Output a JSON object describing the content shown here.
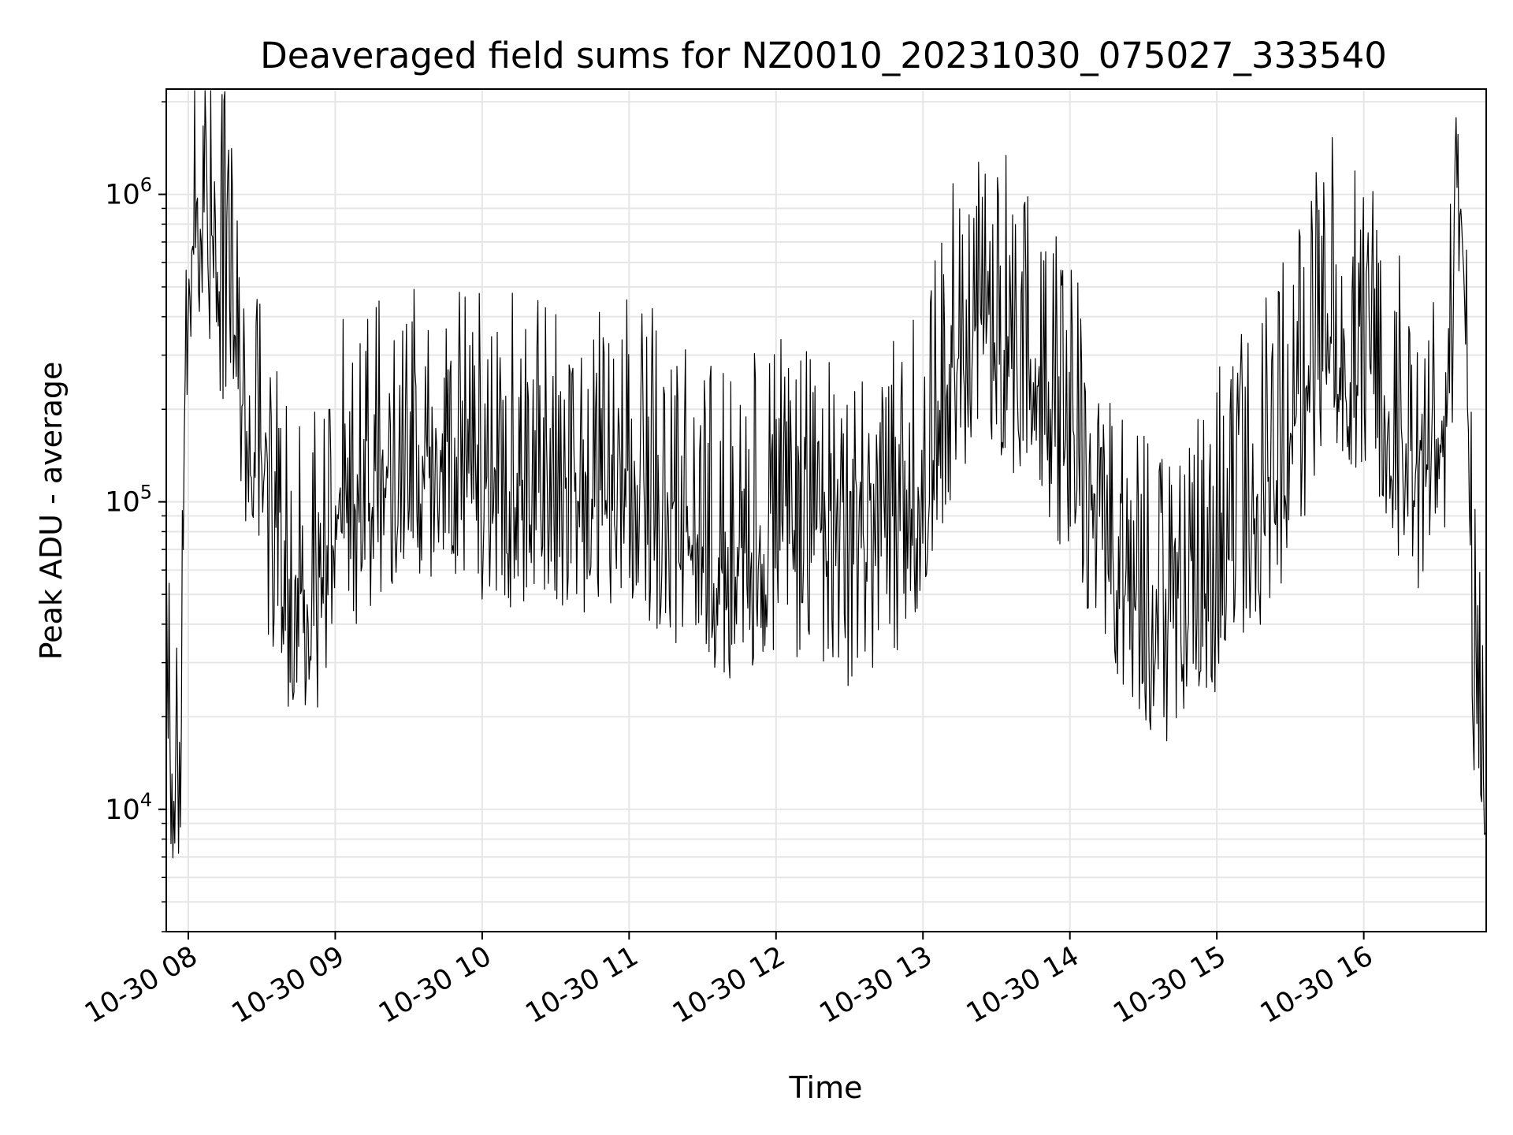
{
  "chart_data": {
    "type": "line",
    "title": "Deaveraged field sums for NZ0010_20231030_075027_333540",
    "xlabel": "Time",
    "ylabel": "Peak ADU - average",
    "yscale": "log",
    "xlim": [
      "2023-10-30T07:51",
      "2023-10-30T16:50"
    ],
    "ylim": [
      4000,
      2200000
    ],
    "grid": true,
    "x_ticks": [
      {
        "value": "2023-10-30T08:00",
        "label": "10-30 08"
      },
      {
        "value": "2023-10-30T09:00",
        "label": "10-30 09"
      },
      {
        "value": "2023-10-30T10:00",
        "label": "10-30 10"
      },
      {
        "value": "2023-10-30T11:00",
        "label": "10-30 11"
      },
      {
        "value": "2023-10-30T12:00",
        "label": "10-30 12"
      },
      {
        "value": "2023-10-30T13:00",
        "label": "10-30 13"
      },
      {
        "value": "2023-10-30T14:00",
        "label": "10-30 14"
      },
      {
        "value": "2023-10-30T15:00",
        "label": "10-30 15"
      },
      {
        "value": "2023-10-30T16:00",
        "label": "10-30 16"
      }
    ],
    "y_ticks": [
      {
        "value": 10000,
        "base": "10",
        "exp": "4"
      },
      {
        "value": 100000,
        "base": "10",
        "exp": "5"
      },
      {
        "value": 1000000,
        "base": "10",
        "exp": "6"
      }
    ],
    "line_color": "#000000",
    "grid_color": "#e6e6e6",
    "series": [
      {
        "x": [
          "2023-10-30T07:51",
          "2023-10-30T07:53",
          "2023-10-30T07:55",
          "2023-10-30T07:57",
          "2023-10-30T07:58",
          "2023-10-30T08:00",
          "2023-10-30T08:02",
          "2023-10-30T08:05",
          "2023-10-30T08:10",
          "2023-10-30T08:15",
          "2023-10-30T08:20",
          "2023-10-30T08:25",
          "2023-10-30T08:30",
          "2023-10-30T08:35",
          "2023-10-30T08:40",
          "2023-10-30T08:45",
          "2023-10-30T08:50",
          "2023-10-30T08:55",
          "2023-10-30T09:00",
          "2023-10-30T09:10",
          "2023-10-30T09:20",
          "2023-10-30T09:30",
          "2023-10-30T09:40",
          "2023-10-30T09:50",
          "2023-10-30T10:00",
          "2023-10-30T10:15",
          "2023-10-30T10:30",
          "2023-10-30T10:45",
          "2023-10-30T11:00",
          "2023-10-30T11:15",
          "2023-10-30T11:30",
          "2023-10-30T11:45",
          "2023-10-30T12:00",
          "2023-10-30T12:15",
          "2023-10-30T12:30",
          "2023-10-30T12:45",
          "2023-10-30T13:00",
          "2023-10-30T13:15",
          "2023-10-30T13:30",
          "2023-10-30T13:45",
          "2023-10-30T14:00",
          "2023-10-30T14:15",
          "2023-10-30T14:30",
          "2023-10-30T14:45",
          "2023-10-30T15:00",
          "2023-10-30T15:15",
          "2023-10-30T15:30",
          "2023-10-30T15:45",
          "2023-10-30T16:00",
          "2023-10-30T16:10",
          "2023-10-30T16:20",
          "2023-10-30T16:30",
          "2023-10-30T16:35",
          "2023-10-30T16:38",
          "2023-10-30T16:40",
          "2023-10-30T16:42",
          "2023-10-30T16:45",
          "2023-10-30T16:48",
          "2023-10-30T16:50"
        ],
        "y": [
          18000,
          15000,
          13000,
          14000,
          120000,
          600000,
          1100000,
          800000,
          600000,
          500000,
          250000,
          180000,
          120000,
          70000,
          50000,
          45000,
          45000,
          55000,
          90000,
          100000,
          120000,
          130000,
          140000,
          130000,
          120000,
          110000,
          100000,
          110000,
          120000,
          90000,
          70000,
          65000,
          80000,
          70000,
          60000,
          70000,
          120000,
          300000,
          350000,
          250000,
          150000,
          80000,
          45000,
          40000,
          60000,
          90000,
          150000,
          400000,
          300000,
          180000,
          120000,
          150000,
          250000,
          900000,
          900000,
          600000,
          25000,
          13000,
          12000
        ]
      }
    ]
  }
}
